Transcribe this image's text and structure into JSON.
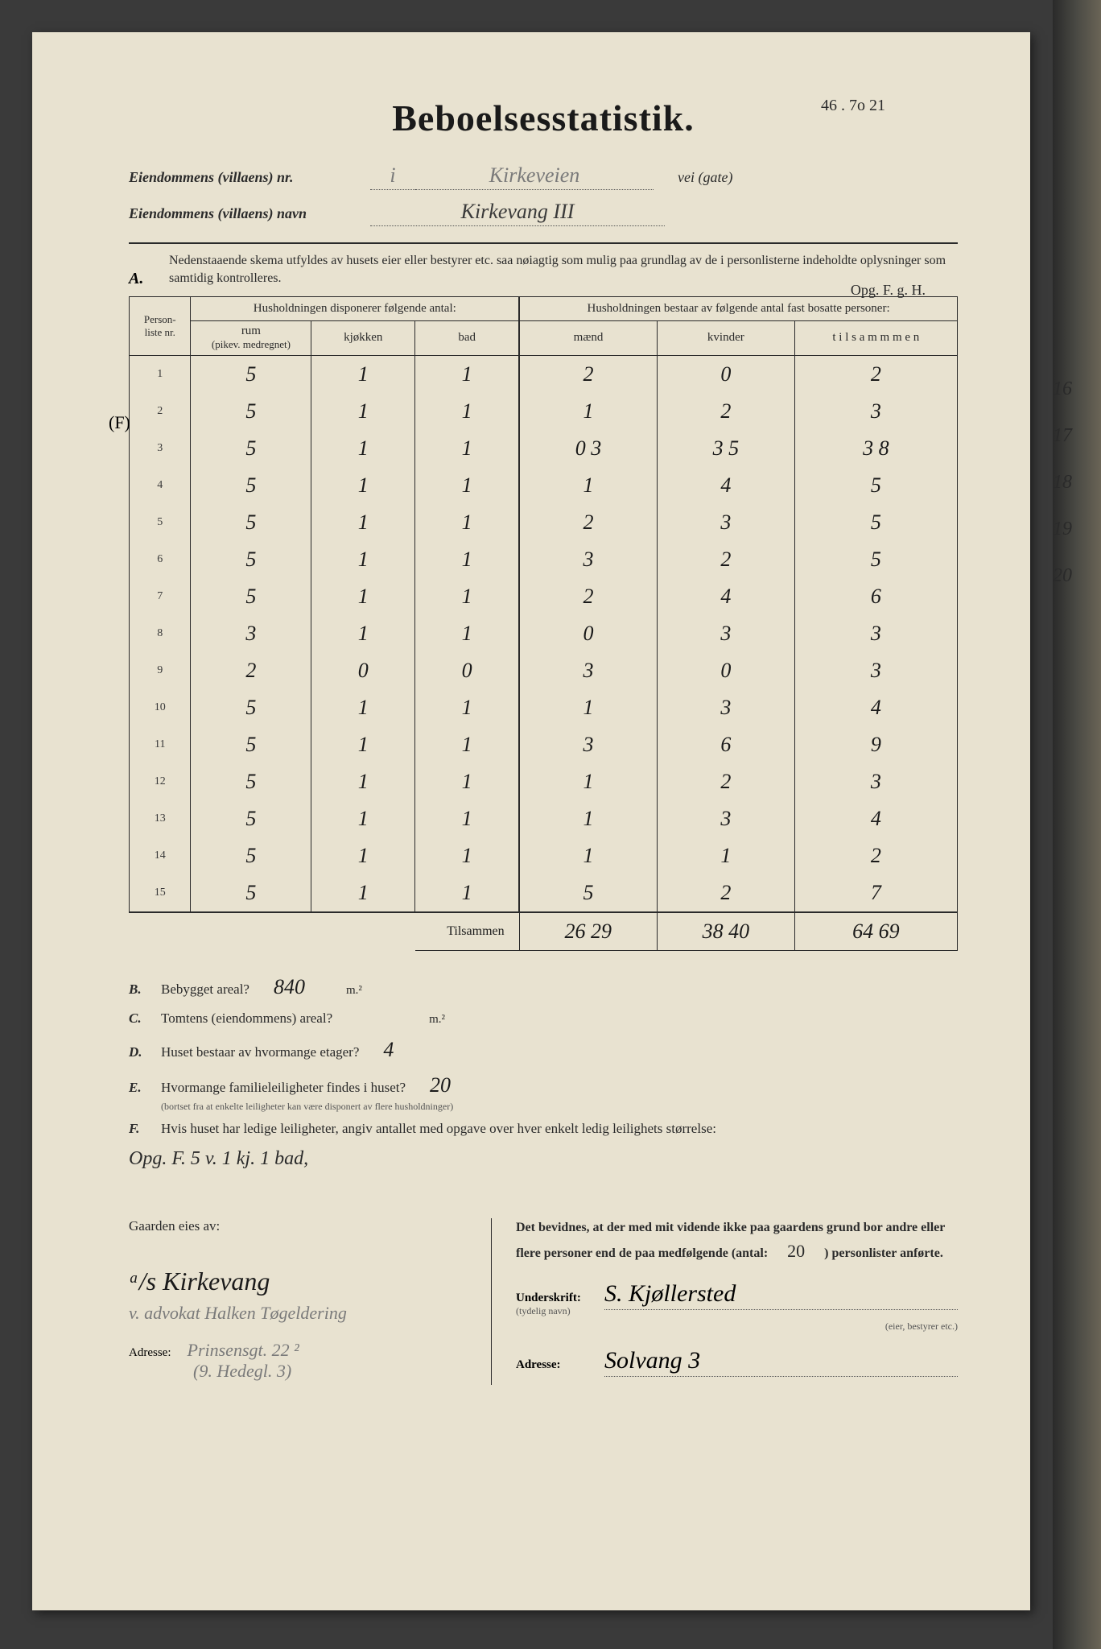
{
  "corner_note": "46 .   7o  21",
  "title": "Beboelsesstatistik.",
  "header": {
    "nr_label": "Eiendommens (villaens) nr.",
    "nr_value_prefix": "i",
    "nr_value": "Kirkeveien",
    "nr_suffix": "vei (gate)",
    "navn_label": "Eiendommens (villaens) navn",
    "navn_value": "Kirkevang  III"
  },
  "opg_note": "Opg. F. g. H.",
  "section_a": {
    "label": "A.",
    "text": "Nedenstaaende skema utfyldes av husets eier eller bestyrer etc. saa nøiagtig som mulig paa grundlag av de i personlisterne indeholdte oplysninger som samtidig kontrolleres."
  },
  "table": {
    "col_person": "Person-\nliste\nnr.",
    "group_left": "Husholdningen disponerer følgende antal:",
    "group_right": "Husholdningen bestaar av følgende antal fast bosatte personer:",
    "col_rum": "rum",
    "col_rum_sub": "(pikev. medregnet)",
    "col_kjokken": "kjøkken",
    "col_bad": "bad",
    "col_maend": "mænd",
    "col_kvinder": "kvinder",
    "col_tilsammen": "t i l s a m m m e n",
    "tilsammen_label": "Tilsammen",
    "row_mark": "(F)",
    "rows": [
      {
        "n": "1",
        "rum": "5",
        "kj": "1",
        "bad": "1",
        "m": "2",
        "k": "0",
        "t": "2"
      },
      {
        "n": "2",
        "rum": "5",
        "kj": "1",
        "bad": "1",
        "m": "1",
        "k": "2",
        "t": "3"
      },
      {
        "n": "3",
        "rum": "5",
        "kj": "1",
        "bad": "1",
        "m": "0  3",
        "k": "3  5",
        "t": "3  8"
      },
      {
        "n": "4",
        "rum": "5",
        "kj": "1",
        "bad": "1",
        "m": "1",
        "k": "4",
        "t": "5"
      },
      {
        "n": "5",
        "rum": "5",
        "kj": "1",
        "bad": "1",
        "m": "2",
        "k": "3",
        "t": "5"
      },
      {
        "n": "6",
        "rum": "5",
        "kj": "1",
        "bad": "1",
        "m": "3",
        "k": "2",
        "t": "5"
      },
      {
        "n": "7",
        "rum": "5",
        "kj": "1",
        "bad": "1",
        "m": "2",
        "k": "4",
        "t": "6"
      },
      {
        "n": "8",
        "rum": "3",
        "kj": "1",
        "bad": "1",
        "m": "0",
        "k": "3",
        "t": "3"
      },
      {
        "n": "9",
        "rum": "2",
        "kj": "0",
        "bad": "0",
        "m": "3",
        "k": "0",
        "t": "3"
      },
      {
        "n": "10",
        "rum": "5",
        "kj": "1",
        "bad": "1",
        "m": "1",
        "k": "3",
        "t": "4"
      },
      {
        "n": "11",
        "rum": "5",
        "kj": "1",
        "bad": "1",
        "m": "3",
        "k": "6",
        "t": "9"
      },
      {
        "n": "12",
        "rum": "5",
        "kj": "1",
        "bad": "1",
        "m": "1",
        "k": "2",
        "t": "3"
      },
      {
        "n": "13",
        "rum": "5",
        "kj": "1",
        "bad": "1",
        "m": "1",
        "k": "3",
        "t": "4"
      },
      {
        "n": "14",
        "rum": "5",
        "kj": "1",
        "bad": "1",
        "m": "1",
        "k": "1",
        "t": "2"
      },
      {
        "n": "15",
        "rum": "5",
        "kj": "1",
        "bad": "1",
        "m": "5",
        "k": "2",
        "t": "7"
      }
    ],
    "totals": {
      "m": "26 29",
      "k": "38 40",
      "t": "64 69"
    }
  },
  "margin_numbers": [
    "16",
    "17",
    "18",
    "19",
    "20"
  ],
  "questions": {
    "b_label": "B.",
    "b_text": "Bebygget areal?",
    "b_value": "840",
    "b_unit": "m.²",
    "c_label": "C.",
    "c_text": "Tomtens (eiendommens) areal?",
    "c_unit": "m.²",
    "d_label": "D.",
    "d_text": "Huset bestaar av hvormange etager?",
    "d_value": "4",
    "e_label": "E.",
    "e_text": "Hvormange familieleiligheter findes i huset?",
    "e_value": "20",
    "e_sub": "(bortset fra at enkelte leiligheter kan være disponert av flere husholdninger)",
    "f_label": "F.",
    "f_text": "Hvis huset har ledige leiligheter, angiv antallet med opgave over hver enkelt ledig leilighets størrelse:",
    "f_answer": "Opg. F.  5 v. 1 kj. 1 bad,"
  },
  "footer": {
    "owner_label": "Gaarden eies av:",
    "owner_name": "ᵃ/s Kirkevang",
    "owner_addr_line": "v. advokat Halken Tøgeldering",
    "addr_label": "Adresse:",
    "owner_addr": "Prinsensgt. 22 ²",
    "owner_addr2": "(9. Hedegl. 3)",
    "attest_text": "Det bevidnes, at der med mit vidende ikke paa gaardens grund bor andre eller flere personer end de paa medfølgende (antal: ",
    "attest_count": "20",
    "attest_text2": ") personlister anførte.",
    "sig_label": "Underskrift:",
    "sig_sub": "(tydelig navn)",
    "sig_value": "S. Kjøllersted",
    "sig_role": "(eier, bestyrer etc.)",
    "addr2_label": "Adresse:",
    "addr2_value": "Solvang 3"
  }
}
